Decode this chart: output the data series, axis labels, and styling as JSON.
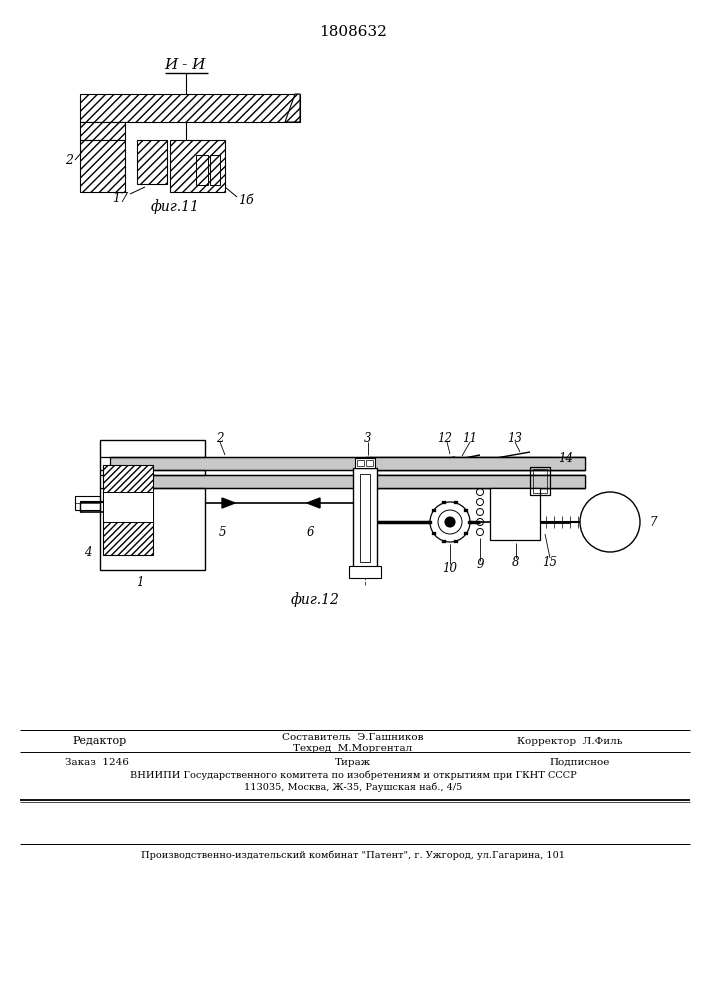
{
  "patent_number": "1808632",
  "section_label": "И - И",
  "fig11_label": "фиг.11",
  "fig12_label": "фиг.12",
  "bg_color": "#ffffff",
  "lc": "#000000",
  "footer_editor": "Редактор",
  "footer_comp": "Составитель  Э.Гашников",
  "footer_tech": "Техред  М.Моргентал",
  "footer_corr": "Корректор  Л.Филь",
  "footer_order": "Заказ  1246",
  "footer_circ": "Тираж",
  "footer_sub": "Подписное",
  "footer_vniip1": "ВНИИПИ Государственного комитета по изобретениям и открытиям при ГКНТ СССР",
  "footer_vniip2": "113035, Москва, Ж-35, Раушская наб., 4/5",
  "footer_plant": "Производственно-издательский комбинат \"Патент\", г. Ужгород, ул.Гагарина, 101"
}
